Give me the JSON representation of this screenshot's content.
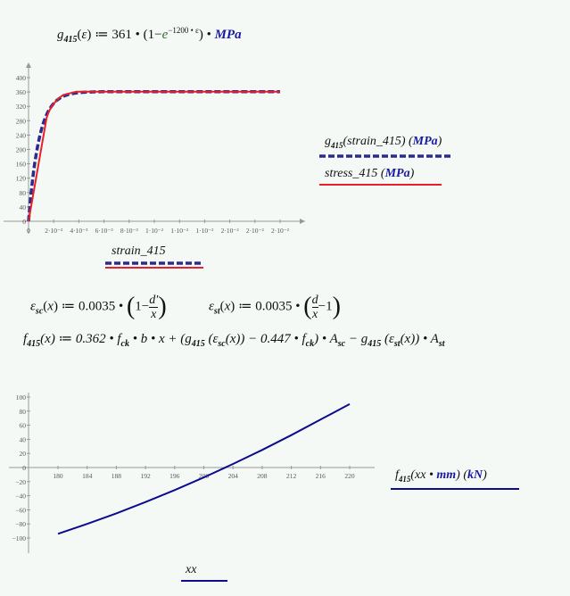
{
  "formulas": {
    "g415": {
      "name": "g",
      "sub": "415",
      "arg": "ε",
      "assign": "≔",
      "coef": "361",
      "one": "1",
      "minus": "−",
      "e": "e",
      "exp": "−1200 • ε",
      "unit": "MPa"
    },
    "eps_sc": {
      "name": "ε",
      "sub": "sc",
      "arg": "x",
      "coef": "0.0035",
      "num": "d′",
      "den": "x",
      "one": "1"
    },
    "eps_st": {
      "name": "ε",
      "sub": "st",
      "arg": "x",
      "coef": "0.0035",
      "num": "d",
      "den": "x",
      "one": "1"
    },
    "f415": {
      "text_a": "(x) ≔ 0.362 • f",
      "sub_ck": "ck",
      "text_b": " • b • x + (g",
      "sub_415": "415",
      "text_c": " (ε",
      "sub_sc": "sc",
      "text_d": "(x)) − 0.447 • f",
      "text_e": ") • A",
      "text_f": " − g",
      "text_g": " (ε",
      "sub_st": "st",
      "text_h": "(x)) • A",
      "name": "f"
    }
  },
  "chart_data": [
    {
      "type": "line",
      "x_ticks": [
        "0",
        "2·10⁻³",
        "4·10⁻³",
        "6·10⁻³",
        "8·10⁻³",
        "1·10⁻²",
        "1·10⁻²",
        "1·10⁻²",
        "2·10⁻²",
        "2·10⁻²",
        "2·10⁻²"
      ],
      "y_ticks": [
        "0",
        "40",
        "80",
        "120",
        "160",
        "200",
        "240",
        "280",
        "320",
        "360",
        "400"
      ],
      "xlim": [
        0,
        0.022
      ],
      "ylim": [
        0,
        420
      ],
      "xlabel": "strain_415",
      "series": [
        {
          "name": "g415(strain_415) (MPa)",
          "color": "#2a2a8f",
          "style": "dashed",
          "formula": "361*(1-exp(-1200*x))",
          "x_range": [
            0,
            0.02
          ]
        },
        {
          "name": "stress_415 (MPa)",
          "color": "#e8202a",
          "style": "solid",
          "x": [
            0,
            0.00144,
            0.00163,
            0.00192,
            0.00241,
            0.00276,
            0.0038,
            0.02
          ],
          "y": [
            0,
            288.7,
            306.7,
            324.8,
            342.8,
            351.8,
            360.9,
            360.9
          ]
        }
      ],
      "legend": {
        "s1_name": "g",
        "s1_sub": "415",
        "s1_arg": "(strain_415)",
        "s1_unit": "MPa",
        "s2_name": "stress_415",
        "s2_unit": "MPa"
      }
    },
    {
      "type": "line",
      "x_ticks": [
        "180",
        "184",
        "188",
        "192",
        "196",
        "200",
        "204",
        "208",
        "212",
        "216",
        "220"
      ],
      "y_ticks": [
        "100",
        "80",
        "60",
        "40",
        "20",
        "0",
        "−20",
        "−40",
        "−60",
        "−80",
        "−100"
      ],
      "xlim": [
        180,
        220
      ],
      "ylim": [
        -100,
        100
      ],
      "xlabel": "xx",
      "series": [
        {
          "name": "f415(xx·mm) (kN)",
          "color": "#0c0c8c",
          "x": [
            180,
            184,
            188,
            192,
            196,
            200,
            204,
            208,
            212,
            216,
            220
          ],
          "y": [
            -94,
            -80,
            -65,
            -49,
            -32,
            -14,
            5,
            25,
            46,
            68,
            90
          ]
        }
      ],
      "legend": {
        "name": "f",
        "sub": "415",
        "arg": "(xx • ",
        "mm": "mm",
        "close": ")",
        "unit": "kN"
      }
    }
  ]
}
